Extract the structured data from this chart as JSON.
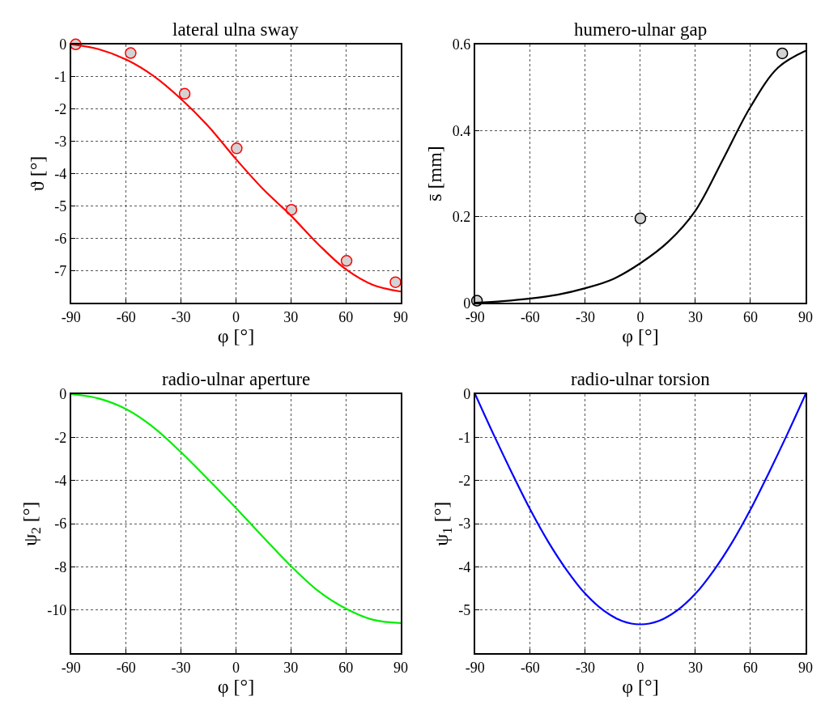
{
  "chart_data": [
    {
      "type": "line",
      "title": "lateral ulna sway",
      "xlabel": "φ [°]",
      "ylabel": "ϑ [°]",
      "xlim": [
        -90,
        90
      ],
      "xticks": [
        -90,
        -60,
        -30,
        0,
        30,
        60,
        90
      ],
      "ylim": [
        -8,
        0
      ],
      "yticks": [
        0,
        -1,
        -2,
        -3,
        -4,
        -5,
        -6,
        -7
      ],
      "grid": true,
      "series": [
        {
          "type": "scatter",
          "marker": "circle",
          "color": "#ff0000",
          "x": [
            -87.5,
            -57.5,
            -28,
            0.4,
            30.3,
            60.4,
            87.1
          ],
          "values": [
            0,
            -0.27,
            -1.53,
            -3.22,
            -5.12,
            -6.7,
            -7.36
          ]
        },
        {
          "line_style": "solid",
          "color": "#ff0000",
          "x": [
            -90,
            -75,
            -60,
            -45,
            -30,
            -15,
            0,
            15,
            30,
            45,
            60,
            75,
            90
          ],
          "values": [
            0,
            -0.15,
            -0.47,
            -0.98,
            -1.69,
            -2.54,
            -3.55,
            -4.49,
            -5.3,
            -6.19,
            -6.96,
            -7.45,
            -7.65
          ]
        }
      ]
    },
    {
      "type": "line",
      "title": "humero-ulnar gap",
      "xlabel": "φ [°]",
      "ylabel": "s̄ [mm]",
      "xlim": [
        -90,
        90
      ],
      "xticks": [
        -90,
        -60,
        -30,
        0,
        30,
        60,
        90
      ],
      "ylim": [
        0,
        0.6
      ],
      "yticks": [
        0,
        0.2,
        0.4,
        0.6
      ],
      "grid": true,
      "series": [
        {
          "type": "scatter",
          "marker": "circle",
          "color": "#000000",
          "x": [
            -89,
            0,
            77.3
          ],
          "values": [
            0.005,
            0.196,
            0.579
          ]
        },
        {
          "line_style": "solid",
          "color": "#000000",
          "x": [
            -90,
            -75,
            -60,
            -45,
            -30,
            -15,
            0,
            15,
            30,
            45,
            60,
            75,
            90
          ],
          "values": [
            0,
            0.004,
            0.01,
            0.019,
            0.034,
            0.055,
            0.092,
            0.141,
            0.214,
            0.333,
            0.455,
            0.546,
            0.585
          ]
        }
      ]
    },
    {
      "type": "line",
      "title": "radio-ulnar aperture",
      "xlabel": "φ [°]",
      "ylabel": "ψ$_{2}$ [°]",
      "xlim": [
        -90,
        90
      ],
      "xticks": [
        -90,
        -60,
        -30,
        0,
        30,
        60,
        90
      ],
      "ylim": [
        -12,
        0
      ],
      "yticks": [
        0,
        -2,
        -4,
        -6,
        -8,
        -10
      ],
      "grid": true,
      "series": [
        {
          "line_style": "solid",
          "color": "#00ee00",
          "x": [
            -90,
            -75,
            -60,
            -45,
            -30,
            -15,
            0,
            15,
            30,
            45,
            60,
            75,
            90
          ],
          "values": [
            0,
            -0.2,
            -0.69,
            -1.54,
            -2.69,
            -3.96,
            -5.27,
            -6.63,
            -7.96,
            -9.12,
            -9.93,
            -10.45,
            -10.6
          ]
        }
      ]
    },
    {
      "type": "line",
      "title": "radio-ulnar torsion",
      "xlabel": "φ [°]",
      "ylabel": "ψ$_{1}$ [°]",
      "xlim": [
        -90,
        90
      ],
      "xticks": [
        -90,
        -60,
        -30,
        0,
        30,
        60,
        90
      ],
      "ylim": [
        -6,
        0
      ],
      "yticks": [
        0,
        -1,
        -2,
        -3,
        -4,
        -5
      ],
      "grid": true,
      "series": [
        {
          "line_style": "solid",
          "color": "#0000ff",
          "x": [
            -90,
            -80,
            -70,
            -60,
            -50,
            -40,
            -30,
            -20,
            -10,
            0,
            10,
            20,
            30,
            40,
            50,
            60,
            70,
            80,
            90
          ],
          "values": [
            0,
            -0.93,
            -1.82,
            -2.67,
            -3.43,
            -4.08,
            -4.62,
            -5.01,
            -5.25,
            -5.33,
            -5.25,
            -5.01,
            -4.62,
            -4.08,
            -3.43,
            -2.67,
            -1.82,
            -0.93,
            0
          ]
        }
      ]
    }
  ]
}
